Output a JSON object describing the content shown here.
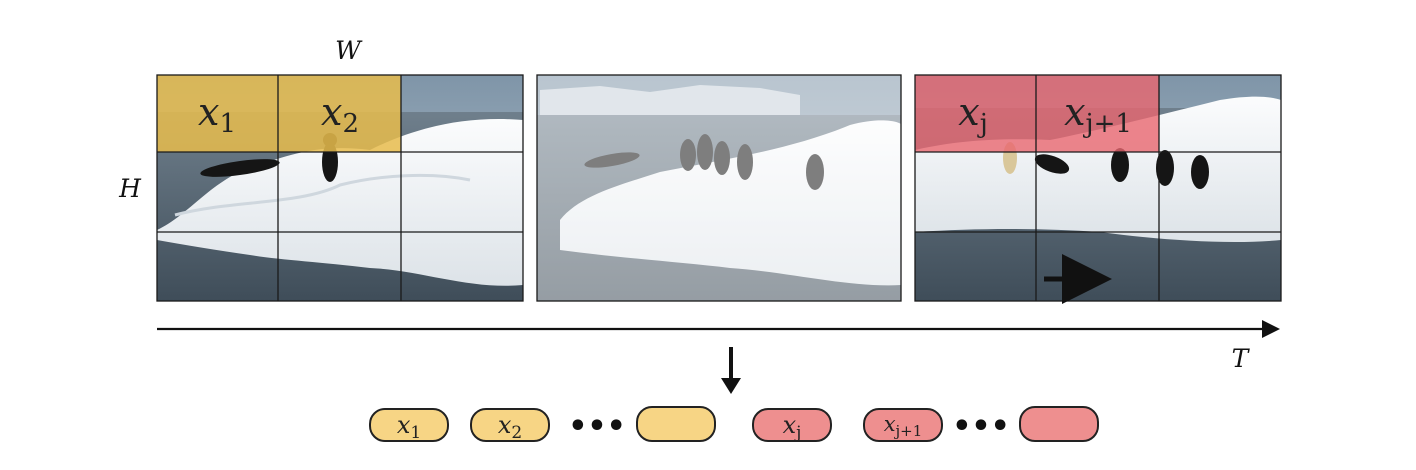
{
  "labels": {
    "width": "W",
    "height": "H",
    "time": "T"
  },
  "frame1": {
    "cells": [
      {
        "main": "x",
        "sub": "1"
      },
      {
        "main": "x",
        "sub": "2"
      }
    ]
  },
  "frame3": {
    "cells": [
      {
        "main": "x",
        "sub": "j"
      },
      {
        "main": "x",
        "sub": "j+1"
      }
    ]
  },
  "tokens": [
    {
      "main": "x",
      "sub": "1"
    },
    {
      "main": "x",
      "sub": "2"
    },
    {
      "main": "",
      "sub": ""
    },
    {
      "main": "x",
      "sub": "j"
    },
    {
      "main": "x",
      "sub": "j+1"
    },
    {
      "main": "",
      "sub": ""
    }
  ],
  "ellipsis": "•••",
  "colors": {
    "yellow": "#e8bc4c",
    "yellow_token": "#f7d585",
    "red": "#e8676f",
    "red_token": "#ee8f8f",
    "grid": "#1a1a1a"
  }
}
